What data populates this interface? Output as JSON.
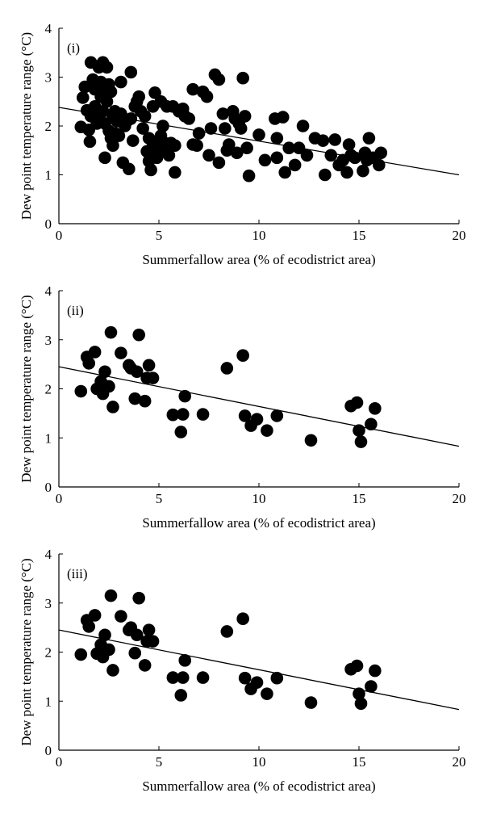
{
  "chart_data": [
    {
      "type": "scatter",
      "panel_label": "(i)",
      "xlabel": "Summerfallow area (% of ecodistrict area)",
      "ylabel": "Dew point temperature range (°C)",
      "xlim": [
        0,
        20
      ],
      "ylim": [
        0,
        4
      ],
      "xticks": [
        0,
        5,
        10,
        15,
        20
      ],
      "yticks": [
        0,
        1,
        2,
        3,
        4
      ],
      "grid": false,
      "trendline": {
        "x": [
          0,
          20
        ],
        "y": [
          2.38,
          1.0
        ]
      },
      "points": [
        [
          1.1,
          1.98
        ],
        [
          1.2,
          2.58
        ],
        [
          1.3,
          2.8
        ],
        [
          1.4,
          2.32
        ],
        [
          1.5,
          1.92
        ],
        [
          1.55,
          1.68
        ],
        [
          1.6,
          2.2
        ],
        [
          1.7,
          2.32
        ],
        [
          1.6,
          3.3
        ],
        [
          1.7,
          2.95
        ],
        [
          1.8,
          2.75
        ],
        [
          1.8,
          2.4
        ],
        [
          1.9,
          2.05
        ],
        [
          2.0,
          2.2
        ],
        [
          2.0,
          3.2
        ],
        [
          2.1,
          2.9
        ],
        [
          2.1,
          2.6
        ],
        [
          2.2,
          2.3
        ],
        [
          2.2,
          3.3
        ],
        [
          2.3,
          2.8
        ],
        [
          2.3,
          2.05
        ],
        [
          2.3,
          1.35
        ],
        [
          2.4,
          2.5
        ],
        [
          2.4,
          3.2
        ],
        [
          2.5,
          1.9
        ],
        [
          2.5,
          2.85
        ],
        [
          2.6,
          2.7
        ],
        [
          2.6,
          1.75
        ],
        [
          2.7,
          2.2
        ],
        [
          2.7,
          1.6
        ],
        [
          2.8,
          2.3
        ],
        [
          2.8,
          1.85
        ],
        [
          2.9,
          2.1
        ],
        [
          3.0,
          1.8
        ],
        [
          3.1,
          2.25
        ],
        [
          3.1,
          2.9
        ],
        [
          3.2,
          1.25
        ],
        [
          3.3,
          2.0
        ],
        [
          3.4,
          2.1
        ],
        [
          3.5,
          1.12
        ],
        [
          3.6,
          2.15
        ],
        [
          3.6,
          3.1
        ],
        [
          3.7,
          1.7
        ],
        [
          3.8,
          2.4
        ],
        [
          3.9,
          2.5
        ],
        [
          4.0,
          2.6
        ],
        [
          4.1,
          2.3
        ],
        [
          4.2,
          1.95
        ],
        [
          4.3,
          2.2
        ],
        [
          4.4,
          1.48
        ],
        [
          4.5,
          1.28
        ],
        [
          4.5,
          1.75
        ],
        [
          4.6,
          1.1
        ],
        [
          4.7,
          1.65
        ],
        [
          4.7,
          2.4
        ],
        [
          4.8,
          1.55
        ],
        [
          4.8,
          2.68
        ],
        [
          4.9,
          1.35
        ],
        [
          5.0,
          1.7
        ],
        [
          5.1,
          2.5
        ],
        [
          5.1,
          1.8
        ],
        [
          5.2,
          2.0
        ],
        [
          5.3,
          1.5
        ],
        [
          5.3,
          1.65
        ],
        [
          5.4,
          2.4
        ],
        [
          5.5,
          1.4
        ],
        [
          5.6,
          1.65
        ],
        [
          5.7,
          2.4
        ],
        [
          5.8,
          1.6
        ],
        [
          5.8,
          1.05
        ],
        [
          6.0,
          2.3
        ],
        [
          6.2,
          2.35
        ],
        [
          6.3,
          2.2
        ],
        [
          6.5,
          2.15
        ],
        [
          6.7,
          1.62
        ],
        [
          6.7,
          2.75
        ],
        [
          6.9,
          1.6
        ],
        [
          7.0,
          1.85
        ],
        [
          7.2,
          2.7
        ],
        [
          7.4,
          2.6
        ],
        [
          7.5,
          1.4
        ],
        [
          7.6,
          1.95
        ],
        [
          7.8,
          3.05
        ],
        [
          8.0,
          2.95
        ],
        [
          8.0,
          1.25
        ],
        [
          8.2,
          2.25
        ],
        [
          8.3,
          1.95
        ],
        [
          8.4,
          1.5
        ],
        [
          8.5,
          1.62
        ],
        [
          8.7,
          2.3
        ],
        [
          8.8,
          2.15
        ],
        [
          8.9,
          1.45
        ],
        [
          9.0,
          2.05
        ],
        [
          9.1,
          1.95
        ],
        [
          9.2,
          2.98
        ],
        [
          9.3,
          2.2
        ],
        [
          9.4,
          1.55
        ],
        [
          9.5,
          0.98
        ],
        [
          10.0,
          1.82
        ],
        [
          10.3,
          1.3
        ],
        [
          10.8,
          2.15
        ],
        [
          10.9,
          1.75
        ],
        [
          10.9,
          1.35
        ],
        [
          11.2,
          2.18
        ],
        [
          11.3,
          1.05
        ],
        [
          11.5,
          1.55
        ],
        [
          11.8,
          1.2
        ],
        [
          12.0,
          1.55
        ],
        [
          12.2,
          2.0
        ],
        [
          12.4,
          1.4
        ],
        [
          12.8,
          1.75
        ],
        [
          13.2,
          1.7
        ],
        [
          13.3,
          1.0
        ],
        [
          13.6,
          1.4
        ],
        [
          13.8,
          1.72
        ],
        [
          14.0,
          1.2
        ],
        [
          14.2,
          1.3
        ],
        [
          14.4,
          1.05
        ],
        [
          14.5,
          1.62
        ],
        [
          14.6,
          1.4
        ],
        [
          14.8,
          1.35
        ],
        [
          15.2,
          1.08
        ],
        [
          15.3,
          1.45
        ],
        [
          15.4,
          1.3
        ],
        [
          15.5,
          1.75
        ],
        [
          15.7,
          1.35
        ],
        [
          16.0,
          1.2
        ],
        [
          16.1,
          1.45
        ]
      ]
    },
    {
      "type": "scatter",
      "panel_label": "(ii)",
      "xlabel": "Summerfallow area (% of ecodistrict area)",
      "ylabel": "Dew point temperature range (°C)",
      "xlim": [
        0,
        20
      ],
      "ylim": [
        0,
        4
      ],
      "xticks": [
        0,
        5,
        10,
        15,
        20
      ],
      "yticks": [
        0,
        1,
        2,
        3,
        4
      ],
      "grid": false,
      "trendline": {
        "x": [
          0,
          20
        ],
        "y": [
          2.45,
          0.83
        ]
      },
      "points": [
        [
          1.1,
          1.95
        ],
        [
          1.4,
          2.65
        ],
        [
          1.5,
          2.52
        ],
        [
          1.8,
          2.75
        ],
        [
          1.9,
          2.0
        ],
        [
          2.1,
          2.15
        ],
        [
          2.2,
          1.9
        ],
        [
          2.3,
          2.35
        ],
        [
          2.5,
          2.05
        ],
        [
          2.6,
          3.15
        ],
        [
          2.7,
          1.63
        ],
        [
          3.1,
          2.73
        ],
        [
          3.5,
          2.48
        ],
        [
          3.6,
          2.42
        ],
        [
          3.8,
          1.8
        ],
        [
          3.9,
          2.35
        ],
        [
          4.0,
          3.1
        ],
        [
          4.3,
          1.75
        ],
        [
          4.4,
          2.22
        ],
        [
          4.5,
          2.48
        ],
        [
          4.7,
          2.22
        ],
        [
          5.7,
          1.47
        ],
        [
          6.1,
          1.12
        ],
        [
          6.2,
          1.48
        ],
        [
          6.3,
          1.85
        ],
        [
          7.2,
          1.48
        ],
        [
          8.4,
          2.42
        ],
        [
          9.2,
          2.68
        ],
        [
          9.3,
          1.45
        ],
        [
          9.6,
          1.25
        ],
        [
          9.9,
          1.38
        ],
        [
          10.4,
          1.15
        ],
        [
          10.9,
          1.45
        ],
        [
          12.6,
          0.95
        ],
        [
          14.6,
          1.65
        ],
        [
          14.9,
          1.72
        ],
        [
          15.0,
          1.15
        ],
        [
          15.1,
          0.92
        ],
        [
          15.6,
          1.28
        ],
        [
          15.8,
          1.6
        ]
      ]
    },
    {
      "type": "scatter",
      "panel_label": "(iii)",
      "xlabel": "Summerfallow area (% of ecodistrict area)",
      "ylabel": "Dew point temperature range (°C)",
      "xlim": [
        0,
        20
      ],
      "ylim": [
        0,
        4
      ],
      "xticks": [
        0,
        5,
        10,
        15,
        20
      ],
      "yticks": [
        0,
        1,
        2,
        3,
        4
      ],
      "grid": false,
      "trendline": {
        "x": [
          0,
          20
        ],
        "y": [
          2.45,
          0.83
        ]
      },
      "points": [
        [
          1.1,
          1.95
        ],
        [
          1.4,
          2.65
        ],
        [
          1.5,
          2.52
        ],
        [
          1.8,
          2.75
        ],
        [
          1.9,
          1.97
        ],
        [
          2.1,
          2.15
        ],
        [
          2.2,
          1.9
        ],
        [
          2.3,
          2.35
        ],
        [
          2.5,
          2.05
        ],
        [
          2.6,
          3.15
        ],
        [
          2.7,
          1.63
        ],
        [
          3.1,
          2.73
        ],
        [
          3.5,
          2.45
        ],
        [
          3.6,
          2.5
        ],
        [
          3.8,
          1.98
        ],
        [
          3.9,
          2.35
        ],
        [
          4.0,
          3.1
        ],
        [
          4.3,
          1.73
        ],
        [
          4.4,
          2.22
        ],
        [
          4.5,
          2.45
        ],
        [
          4.7,
          2.22
        ],
        [
          5.7,
          1.48
        ],
        [
          6.1,
          1.12
        ],
        [
          6.2,
          1.48
        ],
        [
          6.3,
          1.83
        ],
        [
          7.2,
          1.48
        ],
        [
          8.4,
          2.42
        ],
        [
          9.2,
          2.68
        ],
        [
          9.3,
          1.47
        ],
        [
          9.6,
          1.25
        ],
        [
          9.9,
          1.38
        ],
        [
          10.4,
          1.15
        ],
        [
          10.9,
          1.47
        ],
        [
          12.6,
          0.97
        ],
        [
          14.6,
          1.65
        ],
        [
          14.9,
          1.72
        ],
        [
          15.0,
          1.15
        ],
        [
          15.1,
          0.95
        ],
        [
          15.6,
          1.3
        ],
        [
          15.8,
          1.62
        ]
      ]
    }
  ]
}
